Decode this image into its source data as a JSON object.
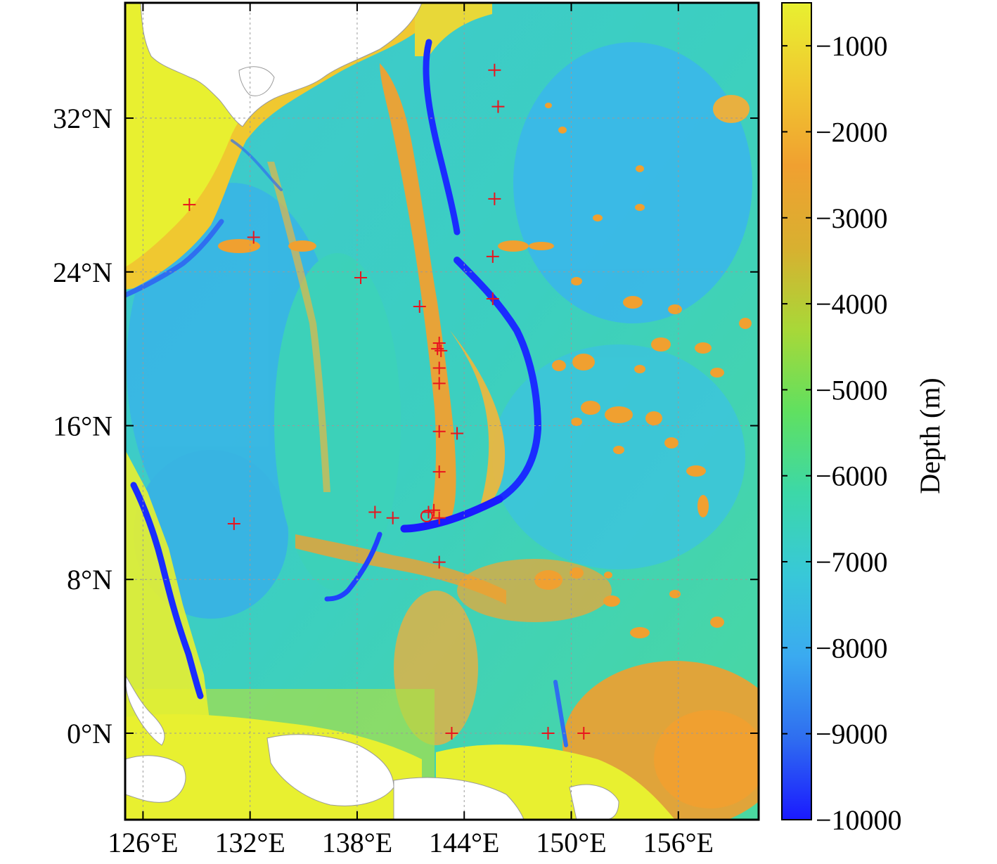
{
  "map": {
    "x_axis": {
      "ticks": [
        {
          "value": 126,
          "label": "126°E"
        },
        {
          "value": 132,
          "label": "132°E"
        },
        {
          "value": 138,
          "label": "138°E"
        },
        {
          "value": 144,
          "label": "144°E"
        },
        {
          "value": 150,
          "label": "150°E"
        },
        {
          "value": 156,
          "label": "156°E"
        }
      ],
      "range": [
        125,
        160.5
      ]
    },
    "y_axis": {
      "ticks": [
        {
          "value": 0,
          "label": "0°N"
        },
        {
          "value": 8,
          "label": "8°N"
        },
        {
          "value": 16,
          "label": "16°N"
        },
        {
          "value": 24,
          "label": "24°N"
        },
        {
          "value": 32,
          "label": "32°N"
        }
      ],
      "range": [
        -4.5,
        38
      ]
    },
    "grid": true,
    "colorbar": {
      "title": "Depth (m)",
      "range": [
        -10000,
        -500
      ],
      "ticks": [
        {
          "value": -1000,
          "label": "−1000"
        },
        {
          "value": -2000,
          "label": "−2000"
        },
        {
          "value": -3000,
          "label": "−3000"
        },
        {
          "value": -4000,
          "label": "−4000"
        },
        {
          "value": -5000,
          "label": "−5000"
        },
        {
          "value": -6000,
          "label": "−6000"
        },
        {
          "value": -7000,
          "label": "−7000"
        },
        {
          "value": -8000,
          "label": "−8000"
        },
        {
          "value": -9000,
          "label": "−9000"
        },
        {
          "value": -10000,
          "label": "−10000"
        }
      ],
      "colors": [
        "#1a1aff",
        "#2f6ef0",
        "#3aaaf0",
        "#38c8d8",
        "#3cd8a8",
        "#60e060",
        "#a8d838",
        "#d8b030",
        "#f0a030",
        "#f0c830",
        "#e8f030"
      ]
    },
    "marker_color": "#e8141e",
    "stations": [
      {
        "lon": 145.7,
        "lat": 34.5
      },
      {
        "lon": 145.9,
        "lat": 32.6
      },
      {
        "lon": 128.6,
        "lat": 27.5
      },
      {
        "lon": 145.7,
        "lat": 27.8
      },
      {
        "lon": 132.2,
        "lat": 25.8
      },
      {
        "lon": 145.6,
        "lat": 24.8
      },
      {
        "lon": 138.2,
        "lat": 23.7
      },
      {
        "lon": 145.6,
        "lat": 22.6
      },
      {
        "lon": 141.5,
        "lat": 22.2
      },
      {
        "lon": 142.6,
        "lat": 20.3
      },
      {
        "lon": 142.5,
        "lat": 20.0
      },
      {
        "lon": 142.7,
        "lat": 19.9
      },
      {
        "lon": 142.6,
        "lat": 19.0
      },
      {
        "lon": 142.6,
        "lat": 18.2
      },
      {
        "lon": 142.6,
        "lat": 15.7
      },
      {
        "lon": 143.6,
        "lat": 15.6
      },
      {
        "lon": 142.6,
        "lat": 13.6
      },
      {
        "lon": 139.0,
        "lat": 11.5
      },
      {
        "lon": 140.0,
        "lat": 11.2
      },
      {
        "lon": 142.0,
        "lat": 11.5
      },
      {
        "lon": 142.3,
        "lat": 11.6
      },
      {
        "lon": 142.6,
        "lat": 11.2
      },
      {
        "lon": 131.1,
        "lat": 10.9
      },
      {
        "lon": 142.6,
        "lat": 8.9
      },
      {
        "lon": 143.3,
        "lat": 0.0
      },
      {
        "lon": 148.7,
        "lat": 0.0
      },
      {
        "lon": 150.7,
        "lat": 0.0
      }
    ],
    "target": {
      "lon": 141.9,
      "lat": 11.3
    }
  }
}
